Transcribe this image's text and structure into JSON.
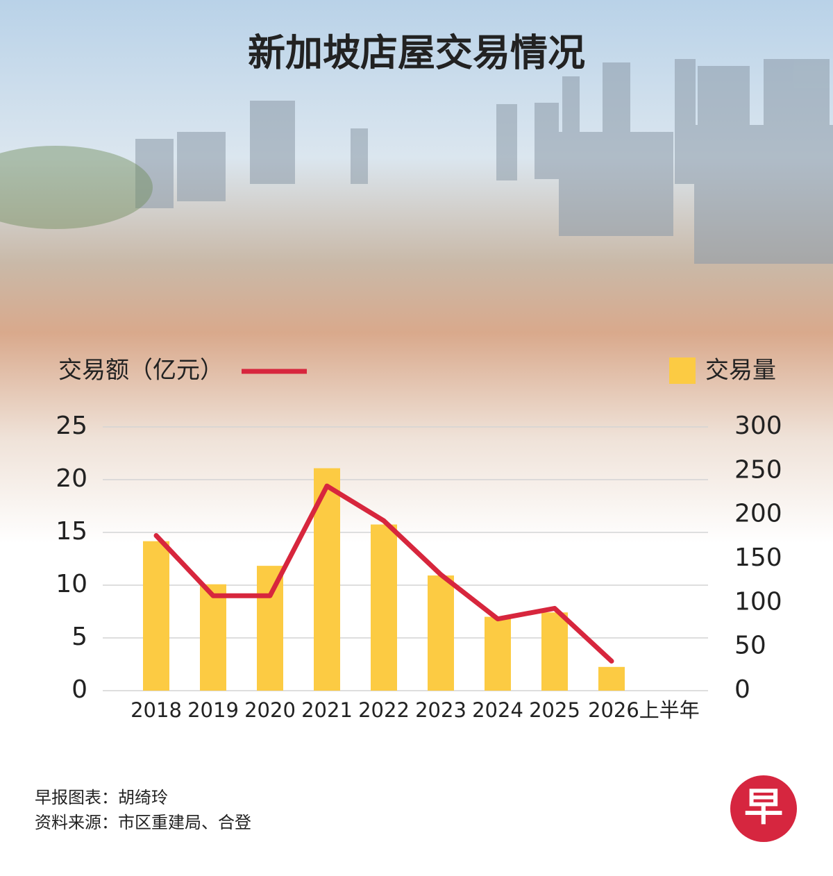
{
  "chart_data": {
    "type": "bar-line",
    "title": "新加坡店屋交易情况",
    "categories": [
      "2018",
      "2019",
      "2020",
      "2021",
      "2022",
      "2023",
      "2024",
      "2025",
      "2026上半年"
    ],
    "series": [
      {
        "name": "交易额（亿元）",
        "type": "line",
        "axis": "y",
        "color": "#d7263d",
        "values": [
          14.7,
          9.0,
          9.0,
          19.4,
          16.1,
          11.0,
          6.8,
          7.8,
          2.8
        ]
      },
      {
        "name": "交易量",
        "type": "bar",
        "axis": "y2",
        "color": "#fccb43",
        "values": [
          170,
          121,
          142,
          253,
          189,
          131,
          84,
          89,
          27
        ]
      }
    ],
    "ylim": [
      0,
      25
    ],
    "yticks": [
      0,
      5,
      10,
      15,
      20,
      25
    ],
    "y2lim": [
      0,
      300
    ],
    "y2ticks": [
      0,
      50,
      100,
      150,
      200,
      250,
      300
    ],
    "grid": true,
    "credit": "早报图表：胡绮玲",
    "source": "资料来源：市区重建局、合登",
    "logo": "早"
  }
}
